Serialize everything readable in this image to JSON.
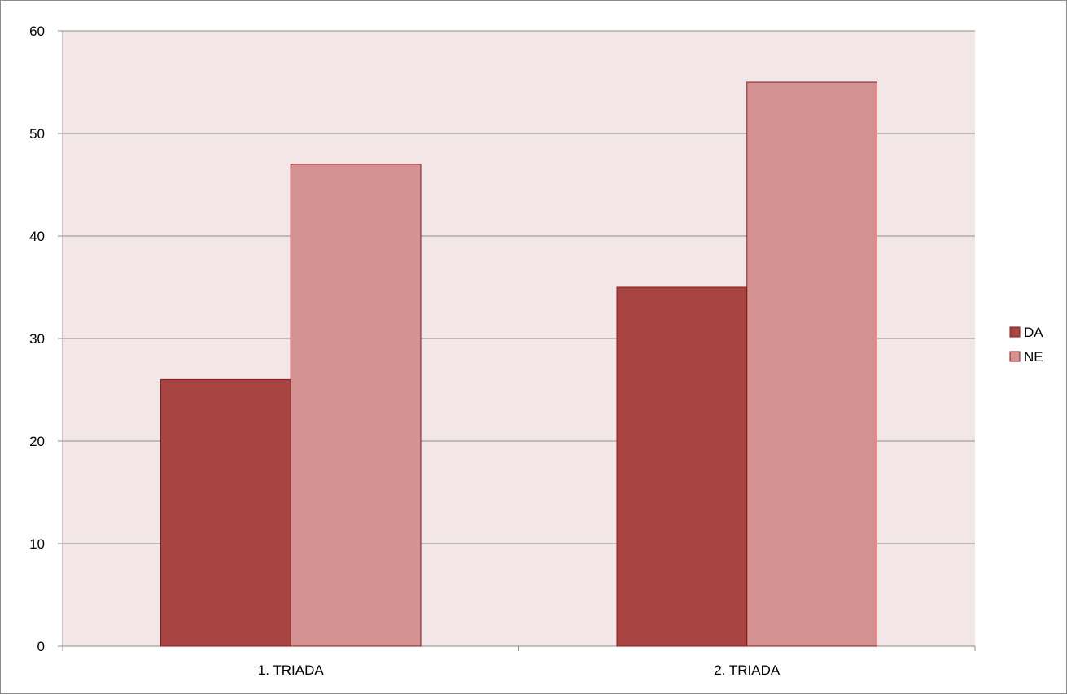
{
  "chart_data": {
    "type": "bar",
    "categories": [
      "1. TRIADA",
      "2. TRIADA"
    ],
    "series": [
      {
        "name": "DA",
        "values": [
          26,
          35
        ],
        "color": "#a84543"
      },
      {
        "name": "NE",
        "values": [
          47,
          55
        ],
        "color": "#d49191"
      }
    ],
    "ylim": [
      0,
      60
    ],
    "yticks": [
      "0",
      "10",
      "20",
      "30",
      "40",
      "50",
      "60"
    ],
    "grid": true,
    "legend_position": "right",
    "plot_background": "#f2e6e6",
    "bar_border_color": "#8b1a1a",
    "gridline_color": "#8c8c8c"
  }
}
